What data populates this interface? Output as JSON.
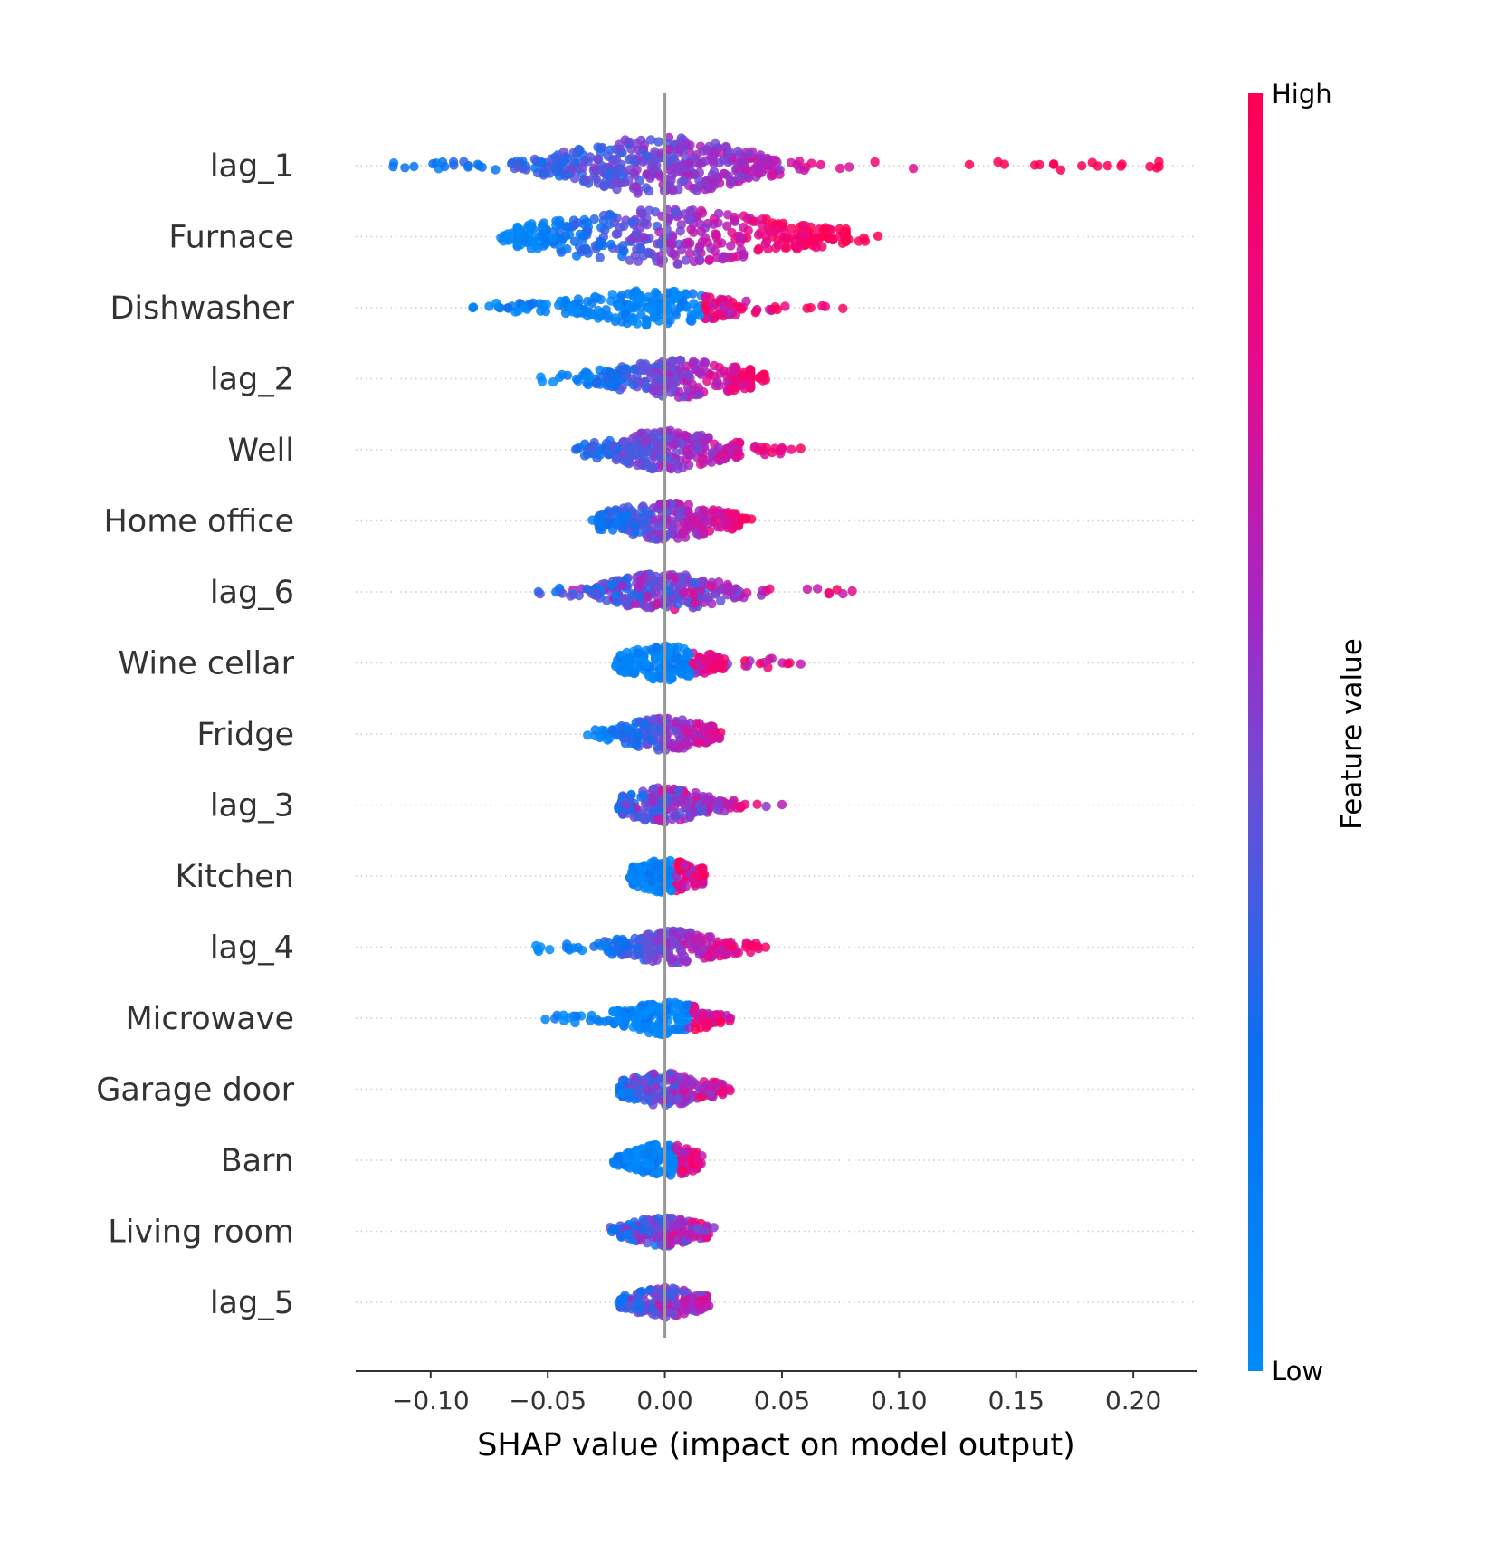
{
  "chart_data": {
    "type": "scatter",
    "subtype": "shap-beeswarm",
    "xlabel": "SHAP value (impact on model output)",
    "xlim": [
      -0.132,
      0.227
    ],
    "xticks": [
      -0.1,
      -0.05,
      0.0,
      0.05,
      0.1,
      0.15,
      0.2
    ],
    "xtick_labels": [
      "−0.10",
      "−0.05",
      "0.00",
      "0.05",
      "0.10",
      "0.15",
      "0.20"
    ],
    "colorbar": {
      "title": "Feature value",
      "high_label": "High",
      "low_label": "Low",
      "low_color": "#008bfb",
      "high_color": "#ff0052"
    },
    "features": [
      {
        "name": "lag_1",
        "min": -0.116,
        "max": 0.211,
        "core": [
          -0.035,
          0.03
        ],
        "width": 1.0,
        "skew": 1.0,
        "mode": "gradient",
        "outliers_low": [
          -0.116,
          -0.099,
          -0.094,
          -0.084,
          -0.078
        ],
        "outliers_high": [
          0.13,
          0.145,
          0.16,
          0.166,
          0.178,
          0.189,
          0.211
        ]
      },
      {
        "name": "Furnace",
        "min": -0.07,
        "max": 0.091,
        "core": [
          -0.045,
          0.045
        ],
        "width": 0.95,
        "skew": 0.95,
        "mode": "gradient",
        "outliers_low": [
          -0.07
        ],
        "outliers_high": [
          0.085,
          0.091
        ]
      },
      {
        "name": "Dishwasher",
        "min": -0.082,
        "max": 0.076,
        "core": [
          -0.03,
          0.02
        ],
        "width": 0.55,
        "skew": 0.35,
        "mode": "mostly_low",
        "outliers_low": [
          -0.082,
          -0.075,
          -0.067,
          -0.06,
          -0.052,
          -0.04
        ],
        "outliers_high": [
          0.048,
          0.076
        ]
      },
      {
        "name": "lag_2",
        "min": -0.053,
        "max": 0.043,
        "core": [
          -0.02,
          0.03
        ],
        "width": 0.6,
        "skew": 0.8,
        "mode": "gradient",
        "outliers_low": [
          -0.053,
          -0.045
        ],
        "outliers_high": [
          0.043
        ]
      },
      {
        "name": "Well",
        "min": -0.038,
        "max": 0.058,
        "core": [
          -0.02,
          0.02
        ],
        "width": 0.65,
        "skew": 0.6,
        "mode": "gradient",
        "outliers_low": [
          -0.038,
          -0.031
        ],
        "outliers_high": [
          0.04,
          0.047,
          0.05,
          0.054,
          0.058
        ]
      },
      {
        "name": "Home office",
        "min": -0.031,
        "max": 0.037,
        "core": [
          -0.02,
          0.02
        ],
        "width": 0.6,
        "skew": 0.6,
        "mode": "gradient",
        "outliers_low": [
          -0.031
        ],
        "outliers_high": [
          0.037
        ]
      },
      {
        "name": "lag_6",
        "min": -0.054,
        "max": 0.08,
        "core": [
          -0.02,
          0.02
        ],
        "width": 0.6,
        "skew": 0.7,
        "mode": "mixed",
        "outliers_low": [
          -0.054
        ],
        "outliers_high": [
          0.035,
          0.07,
          0.08
        ]
      },
      {
        "name": "Wine cellar",
        "min": -0.021,
        "max": 0.058,
        "core": [
          -0.015,
          0.015
        ],
        "width": 0.55,
        "skew": 0.4,
        "mode": "mostly_low",
        "outliers_low": [],
        "outliers_high": [
          0.058
        ]
      },
      {
        "name": "Fridge",
        "min": -0.033,
        "max": 0.024,
        "core": [
          -0.015,
          0.015
        ],
        "width": 0.5,
        "skew": 0.7,
        "mode": "gradient",
        "outliers_low": [
          -0.033
        ],
        "outliers_high": []
      },
      {
        "name": "lag_3",
        "min": -0.02,
        "max": 0.05,
        "core": [
          -0.015,
          0.015
        ],
        "width": 0.55,
        "skew": 0.7,
        "mode": "mixed",
        "outliers_low": [],
        "outliers_high": [
          0.05
        ]
      },
      {
        "name": "Kitchen",
        "min": -0.015,
        "max": 0.019,
        "core": [
          -0.012,
          0.012
        ],
        "width": 0.5,
        "skew": 0.3,
        "mode": "mostly_low",
        "outliers_low": [],
        "outliers_high": []
      },
      {
        "name": "lag_4",
        "min": -0.055,
        "max": 0.043,
        "core": [
          -0.015,
          0.02
        ],
        "width": 0.5,
        "skew": 0.8,
        "mode": "gradient",
        "outliers_low": [
          -0.055,
          -0.053,
          -0.042,
          -0.039,
          -0.037
        ],
        "outliers_high": [
          0.04,
          0.043
        ]
      },
      {
        "name": "Microwave",
        "min": -0.051,
        "max": 0.028,
        "core": [
          -0.015,
          0.015
        ],
        "width": 0.5,
        "skew": 0.4,
        "mode": "mostly_low",
        "outliers_low": [
          -0.051,
          -0.041
        ],
        "outliers_high": [
          0.028
        ]
      },
      {
        "name": "Garage door",
        "min": -0.02,
        "max": 0.029,
        "core": [
          -0.015,
          0.015
        ],
        "width": 0.5,
        "skew": 0.8,
        "mode": "mixed",
        "outliers_low": [],
        "outliers_high": []
      },
      {
        "name": "Barn",
        "min": -0.022,
        "max": 0.016,
        "core": [
          -0.012,
          0.012
        ],
        "width": 0.5,
        "skew": 0.4,
        "mode": "mostly_low",
        "outliers_low": [],
        "outliers_high": []
      },
      {
        "name": "Living room",
        "min": -0.026,
        "max": 0.021,
        "core": [
          -0.012,
          0.012
        ],
        "width": 0.45,
        "skew": 0.6,
        "mode": "mixed",
        "outliers_low": [],
        "outliers_high": []
      },
      {
        "name": "lag_5",
        "min": -0.021,
        "max": 0.021,
        "core": [
          -0.012,
          0.012
        ],
        "width": 0.45,
        "skew": 0.6,
        "mode": "mixed",
        "outliers_low": [],
        "outliers_high": []
      }
    ]
  }
}
